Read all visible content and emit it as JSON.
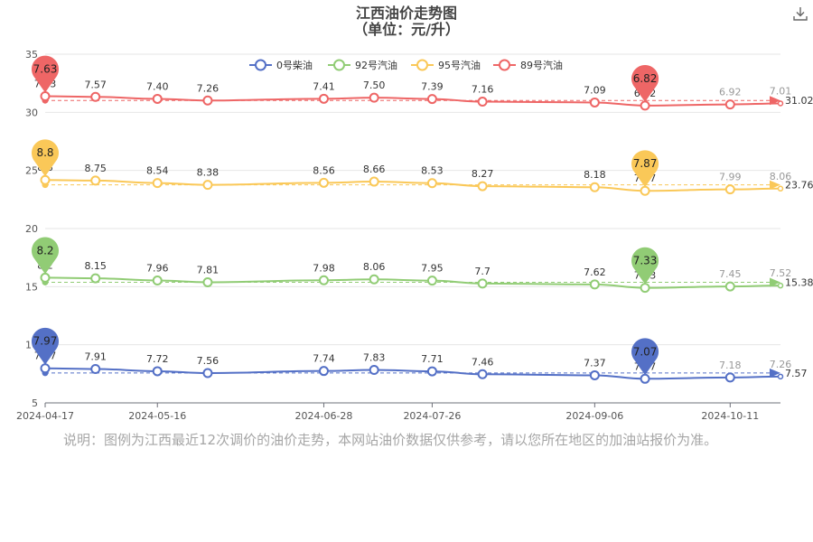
{
  "chart_data": {
    "type": "line",
    "title": "江西油价走势图",
    "subtitle": "（单位：元/升）",
    "x": [
      "2024-04-17",
      "2024-04-30",
      "2024-05-16",
      "2024-05-29",
      "2024-06-28",
      "2024-07-11",
      "2024-07-26",
      "2024-08-08",
      "2024-09-06",
      "2024-09-19",
      "2024-10-11",
      "2024-10-24"
    ],
    "x_tick_labels": [
      "2024-04-17",
      "2024-05-16",
      "2024-06-28",
      "2024-07-26",
      "2024-09-06",
      "2024-10-11"
    ],
    "y_tick_labels": [
      "5",
      "10",
      "15",
      "20",
      "25",
      "30",
      "35"
    ],
    "ylim": [
      5,
      35
    ],
    "grid": true,
    "legend_position": "top-center",
    "series": [
      {
        "name": "0号柴油",
        "color": "#5470c6",
        "values": [
          7.97,
          7.91,
          7.72,
          7.56,
          7.74,
          7.83,
          7.71,
          7.46,
          7.37,
          7.07,
          7.18,
          7.26
        ],
        "labels": [
          "7.97",
          "7.91",
          "7.72",
          "7.56",
          "7.74",
          "7.83",
          "7.71",
          "7.46",
          "7.37",
          "7.07",
          "7.18",
          "7.26"
        ],
        "avg": 7.57,
        "avg_label": "7.57",
        "pin_max": "7.97",
        "pin_min": "7.07"
      },
      {
        "name": "92号汽油",
        "color": "#91cc75",
        "values": [
          8.2,
          8.15,
          7.96,
          7.81,
          7.98,
          8.06,
          7.95,
          7.7,
          7.62,
          7.33,
          7.45,
          7.52
        ],
        "labels": [
          "8.2",
          "8.15",
          "7.96",
          "7.81",
          "7.98",
          "8.06",
          "7.95",
          "7.7",
          "7.62",
          "7.33",
          "7.45",
          "7.52"
        ],
        "avg": 15.38,
        "avg_label": "15.38",
        "pin_max": "8.2",
        "pin_min": "7.33"
      },
      {
        "name": "95号汽油",
        "color": "#fac858",
        "values": [
          8.8,
          8.75,
          8.54,
          8.38,
          8.56,
          8.66,
          8.53,
          8.27,
          8.18,
          7.87,
          7.99,
          8.06
        ],
        "labels": [
          "8.8",
          "8.75",
          "8.54",
          "8.38",
          "8.56",
          "8.66",
          "8.53",
          "8.27",
          "8.18",
          "7.87",
          "7.99",
          "8.06"
        ],
        "avg": 23.76,
        "avg_label": "23.76",
        "pin_max": "8.8",
        "pin_min": "7.87"
      },
      {
        "name": "89号汽油",
        "color": "#ee6666",
        "values": [
          7.63,
          7.57,
          7.4,
          7.26,
          7.41,
          7.5,
          7.39,
          7.16,
          7.09,
          6.82,
          6.92,
          7.01
        ],
        "labels": [
          "7.63",
          "7.57",
          "7.40",
          "7.26",
          "7.41",
          "7.50",
          "7.39",
          "7.16",
          "7.09",
          "6.82",
          "6.92",
          "7.01"
        ],
        "avg": 31.02,
        "avg_label": "31.02",
        "pin_max": "7.63",
        "pin_min": "6.82"
      }
    ]
  },
  "footnote": "说明：图例为江西最近12次调价的油价走势，本网站油价数据仅供参考，请以您所在地区的加油站报价为准。",
  "download_icon": "download-icon"
}
